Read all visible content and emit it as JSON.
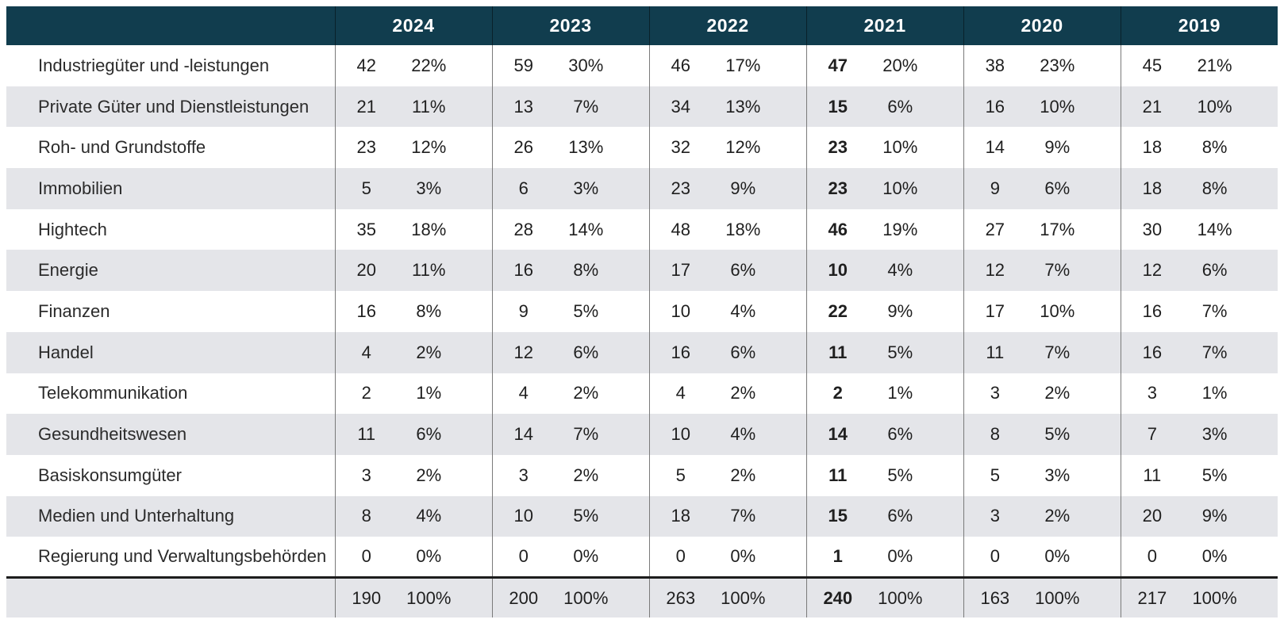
{
  "chart_data": {
    "type": "table",
    "years": [
      "2024",
      "2023",
      "2022",
      "2021",
      "2020",
      "2019"
    ],
    "highlight_year": "2021",
    "rows": [
      {
        "label": "Industriegüter und -leistungen",
        "values": [
          [
            42,
            "22%"
          ],
          [
            59,
            "30%"
          ],
          [
            46,
            "17%"
          ],
          [
            47,
            "20%"
          ],
          [
            38,
            "23%"
          ],
          [
            45,
            "21%"
          ]
        ]
      },
      {
        "label": "Private Güter und Dienstleistungen",
        "values": [
          [
            21,
            "11%"
          ],
          [
            13,
            "7%"
          ],
          [
            34,
            "13%"
          ],
          [
            15,
            "6%"
          ],
          [
            16,
            "10%"
          ],
          [
            21,
            "10%"
          ]
        ]
      },
      {
        "label": "Roh- und Grundstoffe",
        "values": [
          [
            23,
            "12%"
          ],
          [
            26,
            "13%"
          ],
          [
            32,
            "12%"
          ],
          [
            23,
            "10%"
          ],
          [
            14,
            "9%"
          ],
          [
            18,
            "8%"
          ]
        ]
      },
      {
        "label": "Immobilien",
        "values": [
          [
            5,
            "3%"
          ],
          [
            6,
            "3%"
          ],
          [
            23,
            "9%"
          ],
          [
            23,
            "10%"
          ],
          [
            9,
            "6%"
          ],
          [
            18,
            "8%"
          ]
        ]
      },
      {
        "label": "Hightech",
        "values": [
          [
            35,
            "18%"
          ],
          [
            28,
            "14%"
          ],
          [
            48,
            "18%"
          ],
          [
            46,
            "19%"
          ],
          [
            27,
            "17%"
          ],
          [
            30,
            "14%"
          ]
        ]
      },
      {
        "label": "Energie",
        "values": [
          [
            20,
            "11%"
          ],
          [
            16,
            "8%"
          ],
          [
            17,
            "6%"
          ],
          [
            10,
            "4%"
          ],
          [
            12,
            "7%"
          ],
          [
            12,
            "6%"
          ]
        ]
      },
      {
        "label": "Finanzen",
        "values": [
          [
            16,
            "8%"
          ],
          [
            9,
            "5%"
          ],
          [
            10,
            "4%"
          ],
          [
            22,
            "9%"
          ],
          [
            17,
            "10%"
          ],
          [
            16,
            "7%"
          ]
        ]
      },
      {
        "label": "Handel",
        "values": [
          [
            4,
            "2%"
          ],
          [
            12,
            "6%"
          ],
          [
            16,
            "6%"
          ],
          [
            11,
            "5%"
          ],
          [
            11,
            "7%"
          ],
          [
            16,
            "7%"
          ]
        ]
      },
      {
        "label": "Telekommunikation",
        "values": [
          [
            2,
            "1%"
          ],
          [
            4,
            "2%"
          ],
          [
            4,
            "2%"
          ],
          [
            2,
            "1%"
          ],
          [
            3,
            "2%"
          ],
          [
            3,
            "1%"
          ]
        ]
      },
      {
        "label": "Gesundheitswesen",
        "values": [
          [
            11,
            "6%"
          ],
          [
            14,
            "7%"
          ],
          [
            10,
            "4%"
          ],
          [
            14,
            "6%"
          ],
          [
            8,
            "5%"
          ],
          [
            7,
            "3%"
          ]
        ]
      },
      {
        "label": "Basiskonsumgüter",
        "values": [
          [
            3,
            "2%"
          ],
          [
            3,
            "2%"
          ],
          [
            5,
            "2%"
          ],
          [
            11,
            "5%"
          ],
          [
            5,
            "3%"
          ],
          [
            11,
            "5%"
          ]
        ]
      },
      {
        "label": "Medien und Unterhaltung",
        "values": [
          [
            8,
            "4%"
          ],
          [
            10,
            "5%"
          ],
          [
            18,
            "7%"
          ],
          [
            15,
            "6%"
          ],
          [
            3,
            "2%"
          ],
          [
            20,
            "9%"
          ]
        ]
      },
      {
        "label": "Regierung und Verwaltungsbehörden",
        "values": [
          [
            0,
            "0%"
          ],
          [
            0,
            "0%"
          ],
          [
            0,
            "0%"
          ],
          [
            1,
            "0%"
          ],
          [
            0,
            "0%"
          ],
          [
            0,
            "0%"
          ]
        ]
      }
    ],
    "total": {
      "label": "",
      "values": [
        [
          190,
          "100%"
        ],
        [
          200,
          "100%"
        ],
        [
          263,
          "100%"
        ],
        [
          240,
          "100%"
        ],
        [
          163,
          "100%"
        ],
        [
          217,
          "100%"
        ]
      ]
    }
  },
  "colors": {
    "header_bg": "#113d4e",
    "header_text": "#ffffff",
    "row_bg": "#ffffff",
    "row_alt_bg": "#e4e5e9",
    "body_text": "#1f1f1f",
    "divider": "#7a7a7a",
    "total_border": "#1d1d1d"
  }
}
